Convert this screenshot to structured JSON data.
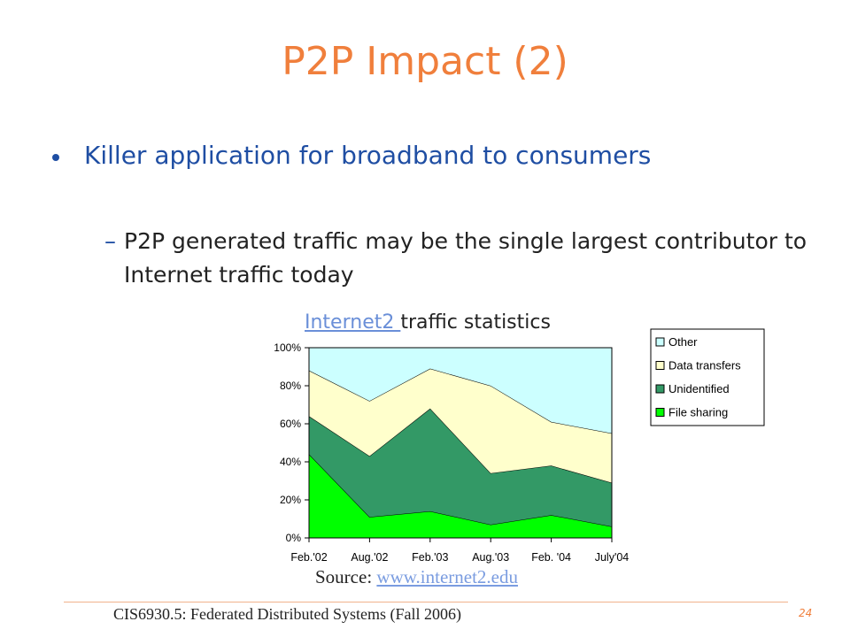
{
  "slide": {
    "title": "P2P Impact (2)",
    "bullet": "Killer application for broadband to consumers",
    "sub_dash": "–",
    "sub_bullet": "P2P generated traffic may be the single largest contributor to Internet traffic today",
    "caption_link": "Internet2 ",
    "caption_rest": "traffic statistics",
    "source_label": "Source: ",
    "source_link": "www.internet2.edu",
    "footer": "CIS6930.5: Federated Distributed Systems (Fall 2006)",
    "page_number": "24"
  },
  "chart_data": {
    "type": "area",
    "stacked": true,
    "x": [
      "Feb.'02",
      "Aug.'02",
      "Feb.'03",
      "Aug.'03",
      "Feb. '04",
      "July'04"
    ],
    "ylim": [
      0,
      100
    ],
    "y_ticks": [
      "0%",
      "20%",
      "40%",
      "60%",
      "80%",
      "100%"
    ],
    "y_tick_values": [
      0,
      20,
      40,
      60,
      80,
      100
    ],
    "legend_position": "right",
    "series": [
      {
        "name": "File sharing",
        "values": [
          44,
          11,
          14,
          7,
          12,
          6
        ],
        "color": "#00ff00"
      },
      {
        "name": "Unidentified",
        "values": [
          20,
          32,
          54,
          27,
          26,
          23
        ],
        "color": "#339966"
      },
      {
        "name": "Data transfers",
        "values": [
          24,
          29,
          21,
          46,
          23,
          26
        ],
        "color": "#ffffcc"
      },
      {
        "name": "Other",
        "values": [
          12,
          28,
          11,
          20,
          39,
          45
        ],
        "color": "#ccffff"
      }
    ],
    "legend_order": [
      "Other",
      "Data transfers",
      "Unidentified",
      "File sharing"
    ]
  }
}
